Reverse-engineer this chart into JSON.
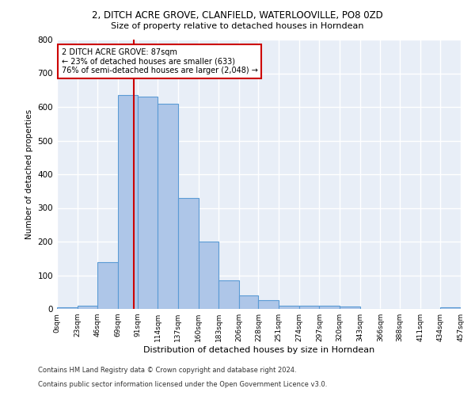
{
  "title1": "2, DITCH ACRE GROVE, CLANFIELD, WATERLOOVILLE, PO8 0ZD",
  "title2": "Size of property relative to detached houses in Horndean",
  "xlabel": "Distribution of detached houses by size in Horndean",
  "ylabel": "Number of detached properties",
  "footnote1": "Contains HM Land Registry data © Crown copyright and database right 2024.",
  "footnote2": "Contains public sector information licensed under the Open Government Licence v3.0.",
  "bin_edges": [
    0,
    23,
    46,
    69,
    91,
    114,
    137,
    160,
    183,
    206,
    228,
    251,
    274,
    297,
    320,
    343,
    366,
    388,
    411,
    434,
    457
  ],
  "bar_heights": [
    5,
    10,
    140,
    635,
    630,
    610,
    330,
    200,
    85,
    40,
    25,
    10,
    10,
    10,
    8,
    0,
    0,
    0,
    0,
    5
  ],
  "bar_color": "#aec6e8",
  "bar_edge_color": "#5b9bd5",
  "bg_color": "#e8eef7",
  "grid_color": "#ffffff",
  "property_size": 87,
  "vline_color": "#cc0000",
  "annotation_line1": "2 DITCH ACRE GROVE: 87sqm",
  "annotation_line2": "← 23% of detached houses are smaller (633)",
  "annotation_line3": "76% of semi-detached houses are larger (2,048) →",
  "annotation_box_color": "#cc0000",
  "ylim": [
    0,
    800
  ],
  "yticks": [
    0,
    100,
    200,
    300,
    400,
    500,
    600,
    700,
    800
  ]
}
